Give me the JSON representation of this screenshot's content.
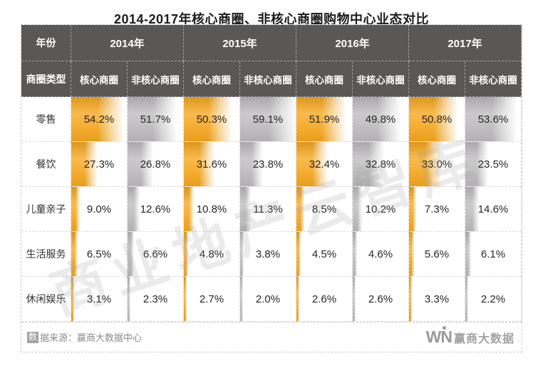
{
  "title": "2014-2017年核心商圈、非核心商圈购物中心业态对比",
  "watermark": "商业地产云智库",
  "table": {
    "year_header_label": "年份",
    "type_header_label": "商圈类型",
    "years": [
      "2014年",
      "2015年",
      "2016年",
      "2017年"
    ],
    "subheaders": [
      "核心商圈",
      "非核心商圈"
    ],
    "rows": [
      {
        "label": "零售",
        "values": [
          "54.2%",
          "51.7%",
          "50.3%",
          "59.1%",
          "51.9%",
          "49.8%",
          "50.8%",
          "53.6%"
        ]
      },
      {
        "label": "餐饮",
        "values": [
          "27.3%",
          "26.8%",
          "31.6%",
          "23.8%",
          "32.4%",
          "32.8%",
          "33.0%",
          "23.5%"
        ]
      },
      {
        "label": "儿童亲子",
        "values": [
          "9.0%",
          "12.6%",
          "10.8%",
          "11.3%",
          "8.5%",
          "10.2%",
          "7.3%",
          "14.6%"
        ]
      },
      {
        "label": "生活服务",
        "values": [
          "6.5%",
          "6.6%",
          "4.8%",
          "3.8%",
          "4.5%",
          "4.6%",
          "5.6%",
          "6.1%"
        ]
      },
      {
        "label": "休闲娱乐",
        "values": [
          "3.1%",
          "2.3%",
          "2.7%",
          "2.0%",
          "2.6%",
          "2.6%",
          "3.3%",
          "2.2%"
        ]
      }
    ],
    "colors": {
      "header_bg": "#5A5757",
      "core_bar": "#F6A71F",
      "noncore_bar": "#BDBBBD"
    }
  },
  "footer": {
    "source_prefix": "数",
    "source_text": "据来源：赢商大数据中心",
    "logo_w": "W",
    "logo_n": "N",
    "brand_name": "赢商大数据"
  },
  "chart_data": {
    "type": "table",
    "title": "2014-2017年核心商圈、非核心商圈购物中心业态对比",
    "unit": "%",
    "row_categories": [
      "零售",
      "餐饮",
      "儿童亲子",
      "生活服务",
      "休闲娱乐"
    ],
    "column_groups": [
      "2014年",
      "2015年",
      "2016年",
      "2017年"
    ],
    "column_subgroups": [
      "核心商圈",
      "非核心商圈"
    ],
    "series": [
      {
        "name": "2014年 核心商圈",
        "values": [
          54.2,
          27.3,
          9.0,
          6.5,
          3.1
        ]
      },
      {
        "name": "2014年 非核心商圈",
        "values": [
          51.7,
          26.8,
          12.6,
          6.6,
          2.3
        ]
      },
      {
        "name": "2015年 核心商圈",
        "values": [
          50.3,
          31.6,
          10.8,
          4.8,
          2.7
        ]
      },
      {
        "name": "2015年 非核心商圈",
        "values": [
          59.1,
          23.8,
          11.3,
          3.8,
          2.0
        ]
      },
      {
        "name": "2016年 核心商圈",
        "values": [
          51.9,
          32.4,
          8.5,
          4.5,
          2.6
        ]
      },
      {
        "name": "2016年 非核心商圈",
        "values": [
          49.8,
          32.8,
          10.2,
          4.6,
          2.6
        ]
      },
      {
        "name": "2017年 核心商圈",
        "values": [
          50.8,
          33.0,
          7.3,
          5.6,
          3.3
        ]
      },
      {
        "name": "2017年 非核心商圈",
        "values": [
          53.6,
          23.5,
          14.6,
          6.1,
          2.2
        ]
      }
    ],
    "bar_fill_note": "cell bars scaled to max value 59.1",
    "layout": {
      "grid": "dashed",
      "legend": "none"
    }
  }
}
